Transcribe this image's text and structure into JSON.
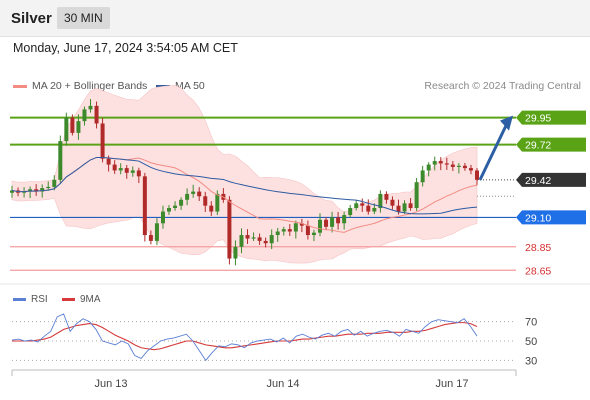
{
  "header": {
    "symbol": "Silver",
    "interval": "30 MIN",
    "datetime": "Monday, June 17, 2024 3:54:05 AM CET"
  },
  "legend": {
    "ma20_label": "MA 20 + Bollinger Bands",
    "ma50_label": "MA 50",
    "copyright": "Research © 2024 Trading Central"
  },
  "rsi_legend": {
    "rsi_label": "RSI",
    "ma9_label": "9MA"
  },
  "colors": {
    "resistance": "#5aa317",
    "support": "#f39c9c",
    "pivot": "#1f5fbf",
    "current": "#333333",
    "arrow": "#2c5fa3",
    "ma20": "#f28b82",
    "ma50": "#2d5aa0",
    "bollinger_fill": "#fde1e1",
    "candle_up": "#3d8a2d",
    "candle_down": "#b02a2a",
    "rsi": "#5b7fd4",
    "rsi_ma": "#d63a3a"
  },
  "chart_data": [
    {
      "type": "candlestick",
      "title": "Silver",
      "x_tick_labels": [
        "Jun 13",
        "Jun 14",
        "Jun 17"
      ],
      "ylim": [
        28.55,
        30.1
      ],
      "levels": [
        {
          "name": "resistance-2",
          "value": 29.95,
          "label": "29.95",
          "style": "resistance"
        },
        {
          "name": "resistance-1",
          "value": 29.72,
          "label": "29.72",
          "style": "resistance"
        },
        {
          "name": "last-price",
          "value": 29.42,
          "label": "29.42",
          "style": "current"
        },
        {
          "name": "pivot",
          "value": 29.1,
          "label": "29.10",
          "style": "pivot"
        },
        {
          "name": "support-1",
          "value": 28.85,
          "label": "28.85",
          "style": "support"
        },
        {
          "name": "support-2",
          "value": 28.65,
          "label": "28.65",
          "style": "support"
        }
      ],
      "series": [
        {
          "name": "Silver",
          "points": "ohlc"
        },
        {
          "name": "MA 20 + Bollinger Bands"
        },
        {
          "name": "MA 50"
        }
      ],
      "close_approx": [
        29.33,
        29.31,
        29.32,
        29.34,
        29.32,
        29.35,
        29.36,
        29.42,
        29.75,
        29.95,
        29.82,
        29.92,
        30.02,
        30.05,
        29.9,
        29.6,
        29.55,
        29.5,
        29.52,
        29.48,
        29.5,
        29.45,
        28.95,
        28.9,
        29.05,
        29.15,
        29.18,
        29.2,
        29.25,
        29.3,
        29.32,
        29.28,
        29.2,
        29.15,
        29.3,
        29.25,
        28.75,
        28.85,
        28.95,
        28.92,
        28.93,
        28.9,
        28.88,
        28.95,
        28.98,
        29.0,
        28.98,
        29.05,
        29.03,
        28.95,
        28.97,
        29.08,
        29.02,
        29.1,
        29.05,
        29.12,
        29.18,
        29.22,
        29.2,
        29.15,
        29.18,
        29.3,
        29.25,
        29.2,
        29.15,
        29.22,
        29.18,
        29.4,
        29.5,
        29.55,
        29.58,
        29.56,
        29.55,
        29.53,
        29.54,
        29.52,
        29.5,
        29.42
      ],
      "arrow": {
        "from_value": 29.42,
        "to_value": 29.95
      }
    },
    {
      "type": "line",
      "title": "RSI",
      "ylim": [
        20,
        80
      ],
      "y_tick_labels": [
        "70",
        "50",
        "30"
      ],
      "y_ticks": [
        70,
        50,
        30
      ],
      "series": [
        {
          "name": "RSI",
          "values": [
            51,
            52,
            50,
            51,
            49,
            55,
            60,
            75,
            78,
            60,
            68,
            73,
            70,
            62,
            50,
            48,
            46,
            50,
            47,
            35,
            32,
            40,
            45,
            50,
            52,
            53,
            55,
            57,
            50,
            40,
            30,
            38,
            45,
            44,
            47,
            46,
            43,
            48,
            50,
            51,
            52,
            49,
            53,
            48,
            55,
            57,
            54,
            52,
            56,
            58,
            55,
            60,
            62,
            56,
            60,
            55,
            58,
            60,
            61,
            59,
            55,
            62,
            60,
            58,
            65,
            70,
            72,
            71,
            70,
            69,
            73,
            65,
            55
          ]
        },
        {
          "name": "9MA",
          "values": [
            50,
            50,
            50,
            50,
            51,
            52,
            54,
            58,
            62,
            64,
            66,
            67,
            68,
            67,
            64,
            60,
            56,
            53,
            50,
            46,
            43,
            42,
            41,
            42,
            44,
            46,
            48,
            50,
            50,
            48,
            46,
            45,
            44,
            43,
            43,
            44,
            45,
            46,
            47,
            48,
            49,
            50,
            50,
            50,
            51,
            52,
            52,
            53,
            54,
            55,
            55,
            56,
            57,
            57,
            57,
            58,
            58,
            58,
            59,
            59,
            59,
            59,
            60,
            60,
            61,
            63,
            65,
            67,
            68,
            69,
            69,
            68,
            65
          ]
        }
      ]
    }
  ]
}
